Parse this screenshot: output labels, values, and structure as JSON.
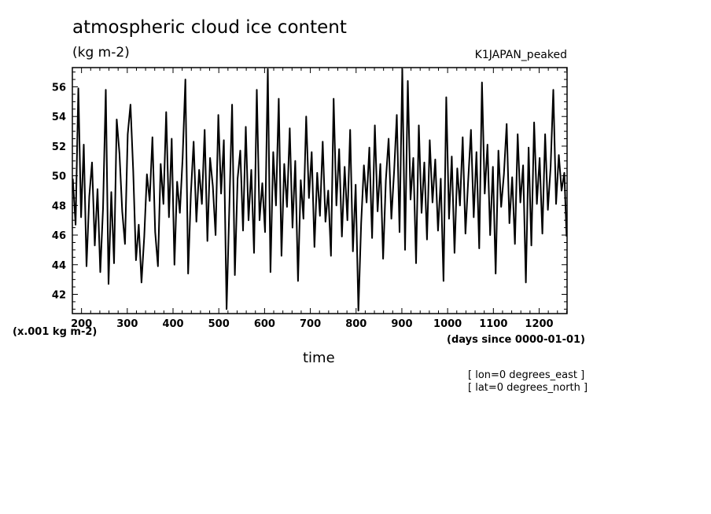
{
  "header": {
    "title": "atmospheric cloud ice content",
    "units": "(kg m-2)",
    "dataset": "K1JAPAN_peaked"
  },
  "axes": {
    "y_scale_label": "(x.001 kg m-2)",
    "x_units_label": "(days since 0000-01-01)",
    "x_label": "time"
  },
  "notes": {
    "lon": "[ lon=0 degrees_east ]",
    "lat": "[ lat=0 degrees_north ]"
  },
  "chart_data": {
    "type": "line",
    "title": "atmospheric cloud ice content",
    "xlabel": "time",
    "ylabel": "(x.001 kg m-2)",
    "xlim": [
      180,
      1261
    ],
    "ylim": [
      40.7,
      57.3
    ],
    "x_ticks": [
      200,
      300,
      400,
      500,
      600,
      700,
      800,
      900,
      1000,
      1100,
      1200
    ],
    "y_ticks": [
      42,
      44,
      46,
      48,
      50,
      52,
      54,
      56
    ],
    "grid": false,
    "line_color": "#000000",
    "series": [
      {
        "x": [
          181,
          187,
          193,
          199,
          205,
          211,
          217,
          223,
          229,
          235,
          241,
          247,
          253,
          259,
          265,
          271,
          277,
          283,
          289,
          295,
          301,
          307,
          313,
          319,
          325,
          331,
          337,
          343,
          349,
          355,
          361,
          367,
          373,
          379,
          385,
          391,
          397,
          403,
          409,
          415,
          421,
          427,
          433,
          439,
          445,
          451,
          457,
          463,
          469,
          475,
          481,
          487,
          493,
          499,
          505,
          511,
          517,
          523,
          529,
          535,
          541,
          547,
          553,
          559,
          565,
          571,
          577,
          583,
          589,
          595,
          601,
          607,
          613,
          619,
          625,
          631,
          637,
          643,
          649,
          655,
          661,
          667,
          673,
          679,
          685,
          691,
          697,
          703,
          709,
          715,
          721,
          727,
          733,
          739,
          745,
          751,
          757,
          763,
          769,
          775,
          781,
          787,
          793,
          799,
          805,
          811,
          817,
          823,
          829,
          835,
          841,
          847,
          853,
          859,
          865,
          871,
          877,
          883,
          889,
          895,
          901,
          907,
          913,
          919,
          925,
          931,
          937,
          943,
          949,
          955,
          961,
          967,
          973,
          979,
          985,
          991,
          997,
          1003,
          1009,
          1015,
          1021,
          1027,
          1033,
          1039,
          1045,
          1051,
          1057,
          1063,
          1069,
          1075,
          1081,
          1087,
          1093,
          1099,
          1105,
          1111,
          1117,
          1123,
          1129,
          1135,
          1141,
          1147,
          1153,
          1159,
          1165,
          1171,
          1177,
          1183,
          1189,
          1195,
          1201,
          1207,
          1213,
          1219,
          1225,
          1231,
          1237,
          1243,
          1249,
          1255,
          1260
        ],
        "values": [
          49.8,
          46.7,
          55.9,
          47.2,
          52.1,
          43.9,
          48.6,
          50.9,
          45.3,
          49.1,
          43.5,
          47.8,
          55.8,
          42.7,
          48.9,
          44.1,
          53.8,
          51.5,
          47.6,
          45.4,
          52.8,
          54.8,
          50.3,
          44.3,
          46.7,
          42.8,
          45.9,
          50.1,
          48.3,
          52.6,
          46.2,
          43.9,
          50.8,
          48.1,
          54.3,
          47.2,
          52.5,
          44.0,
          49.6,
          47.5,
          51.2,
          56.5,
          43.4,
          48.8,
          52.3,
          46.9,
          50.4,
          48.1,
          53.1,
          45.6,
          51.2,
          49.3,
          46.0,
          54.1,
          48.8,
          52.4,
          41.0,
          47.9,
          54.8,
          43.3,
          49.8,
          51.7,
          46.3,
          53.3,
          47.0,
          50.4,
          44.8,
          55.8,
          47.0,
          49.5,
          46.2,
          57.2,
          43.5,
          51.6,
          48.0,
          55.2,
          44.6,
          50.8,
          47.9,
          53.2,
          46.5,
          51.0,
          42.9,
          49.7,
          47.1,
          54.0,
          48.5,
          51.6,
          45.2,
          50.2,
          47.3,
          52.3,
          46.9,
          49.0,
          44.6,
          55.2,
          48.0,
          51.8,
          45.9,
          50.6,
          47.0,
          53.1,
          44.9,
          49.4,
          40.9,
          46.8,
          50.7,
          48.2,
          51.9,
          45.8,
          53.4,
          47.6,
          50.8,
          44.4,
          49.7,
          52.5,
          47.1,
          50.3,
          54.1,
          46.2,
          57.2,
          45.0,
          56.4,
          48.4,
          51.2,
          44.1,
          53.4,
          47.5,
          50.9,
          45.7,
          52.4,
          48.2,
          51.1,
          46.3,
          49.8,
          42.9,
          55.3,
          47.1,
          51.3,
          44.8,
          50.5,
          48.0,
          52.6,
          46.1,
          49.7,
          53.1,
          47.2,
          51.6,
          45.1,
          56.3,
          48.8,
          52.1,
          46.0,
          50.6,
          43.4,
          51.7,
          47.9,
          50.1,
          53.5,
          46.8,
          49.9,
          45.4,
          52.8,
          48.2,
          50.7,
          42.8,
          51.9,
          45.3,
          53.6,
          48.1,
          51.2,
          46.1,
          52.8,
          47.7,
          50.6,
          55.8,
          48.1,
          51.4,
          49.0,
          50.2,
          45.9
        ]
      }
    ]
  }
}
